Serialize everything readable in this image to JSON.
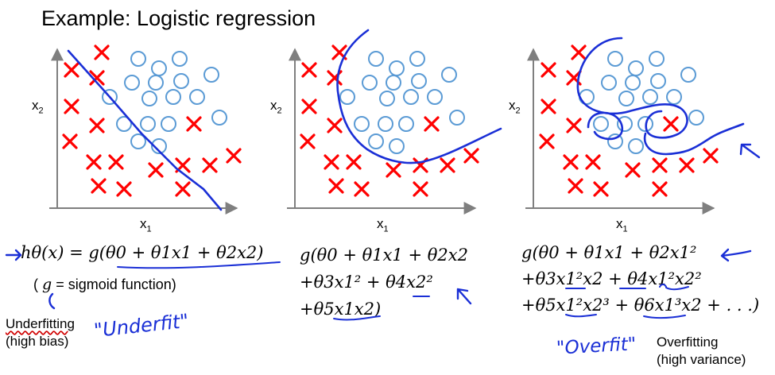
{
  "title": "Example: Logistic regression",
  "panels": [
    {
      "id": "underfit",
      "xlabel": "x",
      "xlabel_sub": "1",
      "ylabel": "x",
      "ylabel_sub": "2"
    },
    {
      "id": "justright",
      "xlabel": "x",
      "xlabel_sub": "1",
      "ylabel": "x",
      "ylabel_sub": "2"
    },
    {
      "id": "overfit",
      "xlabel": "x",
      "xlabel_sub": "1",
      "ylabel": "x",
      "ylabel_sub": "2"
    }
  ],
  "formulas": {
    "left_line1": "hθ(x) = g(θ0 + θ1x1 + θ2x2)",
    "left_line2_g": "g",
    "left_line2_rest": " = sigmoid function)",
    "left_line2_open": "(",
    "mid_line1": "g(θ0 + θ1x1 + θ2x2",
    "mid_line2": "+θ3x1² + θ4x2²",
    "mid_line3": "+θ5x1x2)",
    "right_line1": "g(θ0 + θ1x1 + θ2x1²",
    "right_line2": "+θ3x1²x2 + θ4x1²x2²",
    "right_line3": "+θ5x1²x2³ + θ6x1³x2 + . . .)"
  },
  "labels": {
    "underfitting": "Underfitting",
    "high_bias": "(high bias)",
    "overfitting": "Overfitting",
    "high_variance": "(high variance)"
  },
  "handwritten": {
    "underfit": "\"Underfit\"",
    "overfit": "\"Overfit\""
  },
  "colors": {
    "cross": "#ff0000",
    "circle": "#5b9bd5",
    "ink": "#1a2fd6",
    "axis": "#7f7f7f"
  }
}
